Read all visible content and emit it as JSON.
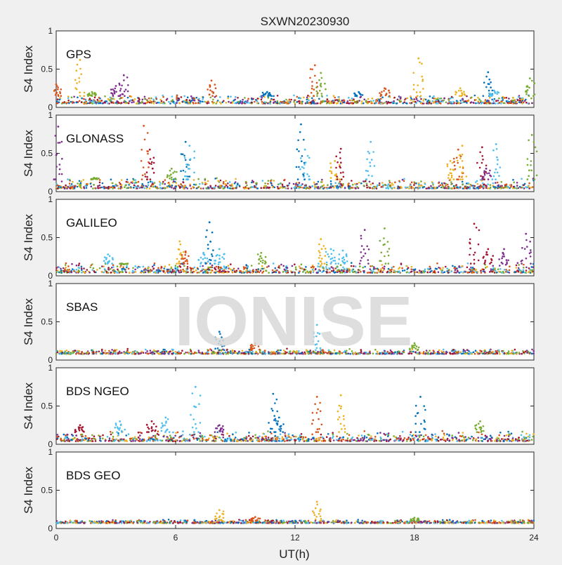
{
  "figure_title": "SXWN20230930",
  "watermark": "IONISE",
  "xlabel": "UT(h)",
  "ylabel": "S4 Index",
  "colors": [
    "#0072BD",
    "#D95319",
    "#EDB120",
    "#7E2F8E",
    "#77AC30",
    "#4DBEEE",
    "#A2142F"
  ],
  "chart_data": [
    {
      "type": "scatter",
      "label": "GPS",
      "xlim": [
        0,
        24
      ],
      "ylim": [
        0,
        1
      ],
      "xticks": [
        "0",
        "6",
        "12",
        "18",
        "24"
      ],
      "yticks": [
        "0",
        "0.5",
        "1"
      ],
      "baseline": [
        0.03,
        0.15
      ],
      "spikes": [
        {
          "x": 0.0,
          "peak": 0.3,
          "c": 1
        },
        {
          "x": 1.2,
          "peak": 0.62,
          "c": 2
        },
        {
          "x": 1.8,
          "peak": 0.2,
          "c": 4
        },
        {
          "x": 3.0,
          "peak": 0.28,
          "c": 3
        },
        {
          "x": 3.4,
          "peak": 0.42,
          "c": 3
        },
        {
          "x": 7.8,
          "peak": 0.35,
          "c": 1
        },
        {
          "x": 10.6,
          "peak": 0.2,
          "c": 0
        },
        {
          "x": 13.0,
          "peak": 0.55,
          "c": 1
        },
        {
          "x": 13.3,
          "peak": 0.45,
          "c": 4
        },
        {
          "x": 15.2,
          "peak": 0.2,
          "c": 0
        },
        {
          "x": 16.5,
          "peak": 0.25,
          "c": 1
        },
        {
          "x": 18.2,
          "peak": 0.64,
          "c": 2
        },
        {
          "x": 20.3,
          "peak": 0.25,
          "c": 2
        },
        {
          "x": 21.7,
          "peak": 0.46,
          "c": 0
        },
        {
          "x": 22.0,
          "peak": 0.22,
          "c": 5
        },
        {
          "x": 23.8,
          "peak": 0.38,
          "c": 4
        }
      ]
    },
    {
      "type": "scatter",
      "label": "GLONASS",
      "xlim": [
        0,
        24
      ],
      "ylim": [
        0,
        1
      ],
      "xticks": [
        "0",
        "6",
        "12",
        "18",
        "24"
      ],
      "yticks": [
        "0",
        "0.5",
        "1"
      ],
      "baseline": [
        0.02,
        0.16
      ],
      "spikes": [
        {
          "x": 0.1,
          "peak": 0.85,
          "c": 3
        },
        {
          "x": 1.9,
          "peak": 0.18,
          "c": 4
        },
        {
          "x": 4.4,
          "peak": 0.86,
          "c": 1
        },
        {
          "x": 4.7,
          "peak": 0.55,
          "c": 6
        },
        {
          "x": 5.8,
          "peak": 0.3,
          "c": 4
        },
        {
          "x": 6.5,
          "peak": 0.65,
          "c": 0
        },
        {
          "x": 6.7,
          "peak": 0.6,
          "c": 5
        },
        {
          "x": 12.3,
          "peak": 0.88,
          "c": 0
        },
        {
          "x": 12.5,
          "peak": 0.55,
          "c": 5
        },
        {
          "x": 14.0,
          "peak": 0.4,
          "c": 2
        },
        {
          "x": 14.3,
          "peak": 0.56,
          "c": 6
        },
        {
          "x": 15.8,
          "peak": 0.65,
          "c": 5
        },
        {
          "x": 19.8,
          "peak": 0.4,
          "c": 2
        },
        {
          "x": 20.2,
          "peak": 0.55,
          "c": 1
        },
        {
          "x": 20.4,
          "peak": 0.6,
          "c": 2
        },
        {
          "x": 21.4,
          "peak": 0.58,
          "c": 6
        },
        {
          "x": 21.6,
          "peak": 0.3,
          "c": 3
        },
        {
          "x": 22.1,
          "peak": 0.62,
          "c": 5
        },
        {
          "x": 23.9,
          "peak": 0.74,
          "c": 4
        }
      ]
    },
    {
      "type": "scatter",
      "label": "GALILEO",
      "xlim": [
        0,
        24
      ],
      "ylim": [
        0,
        1
      ],
      "xticks": [
        "0",
        "6",
        "12",
        "18",
        "24"
      ],
      "yticks": [
        "0",
        "0.5",
        "1"
      ],
      "baseline": [
        0.02,
        0.16
      ],
      "spikes": [
        {
          "x": 2.6,
          "peak": 0.28,
          "c": 5
        },
        {
          "x": 3.4,
          "peak": 0.15,
          "c": 4
        },
        {
          "x": 6.2,
          "peak": 0.45,
          "c": 2
        },
        {
          "x": 6.5,
          "peak": 0.32,
          "c": 1
        },
        {
          "x": 7.4,
          "peak": 0.3,
          "c": 5
        },
        {
          "x": 7.7,
          "peak": 0.7,
          "c": 0
        },
        {
          "x": 8.2,
          "peak": 0.35,
          "c": 5
        },
        {
          "x": 10.3,
          "peak": 0.3,
          "c": 4
        },
        {
          "x": 13.3,
          "peak": 0.48,
          "c": 2
        },
        {
          "x": 13.8,
          "peak": 0.35,
          "c": 5
        },
        {
          "x": 14.4,
          "peak": 0.33,
          "c": 5
        },
        {
          "x": 15.5,
          "peak": 0.6,
          "c": 3
        },
        {
          "x": 16.5,
          "peak": 0.62,
          "c": 4
        },
        {
          "x": 21.0,
          "peak": 0.68,
          "c": 6
        },
        {
          "x": 21.7,
          "peak": 0.35,
          "c": 6
        },
        {
          "x": 22.5,
          "peak": 0.35,
          "c": 3
        },
        {
          "x": 23.6,
          "peak": 0.55,
          "c": 3
        }
      ]
    },
    {
      "type": "scatter",
      "label": "SBAS",
      "xlim": [
        0,
        24
      ],
      "ylim": [
        0,
        1
      ],
      "xticks": [
        "0",
        "6",
        "12",
        "18",
        "24"
      ],
      "yticks": [
        "0",
        "0.5",
        "1"
      ],
      "baseline": [
        0.06,
        0.13
      ],
      "spikes": [
        {
          "x": 8.2,
          "peak": 0.37,
          "c": 0
        },
        {
          "x": 10.0,
          "peak": 0.22,
          "c": 1
        },
        {
          "x": 13.1,
          "peak": 0.46,
          "c": 5
        },
        {
          "x": 18.0,
          "peak": 0.22,
          "c": 4
        }
      ]
    },
    {
      "type": "scatter",
      "label": "BDS NGEO",
      "xlim": [
        0,
        24
      ],
      "ylim": [
        0,
        1
      ],
      "xticks": [
        "0",
        "6",
        "12",
        "18",
        "24"
      ],
      "yticks": [
        "0",
        "0.5",
        "1"
      ],
      "baseline": [
        0.02,
        0.16
      ],
      "spikes": [
        {
          "x": 1.2,
          "peak": 0.25,
          "c": 6
        },
        {
          "x": 3.2,
          "peak": 0.3,
          "c": 5
        },
        {
          "x": 4.8,
          "peak": 0.3,
          "c": 6
        },
        {
          "x": 5.5,
          "peak": 0.35,
          "c": 5
        },
        {
          "x": 7.0,
          "peak": 0.75,
          "c": 5
        },
        {
          "x": 8.2,
          "peak": 0.25,
          "c": 3
        },
        {
          "x": 10.9,
          "peak": 0.66,
          "c": 0
        },
        {
          "x": 11.2,
          "peak": 0.35,
          "c": 0
        },
        {
          "x": 13.1,
          "peak": 0.62,
          "c": 1
        },
        {
          "x": 14.3,
          "peak": 0.64,
          "c": 2
        },
        {
          "x": 18.3,
          "peak": 0.62,
          "c": 0
        },
        {
          "x": 21.3,
          "peak": 0.3,
          "c": 4
        }
      ]
    },
    {
      "type": "scatter",
      "label": "BDS GEO",
      "xlim": [
        0,
        24
      ],
      "ylim": [
        0,
        1
      ],
      "xticks": [
        "0",
        "6",
        "12",
        "18",
        "24"
      ],
      "yticks": [
        "0",
        "0.5",
        "1"
      ],
      "baseline": [
        0.05,
        0.1
      ],
      "spikes": [
        {
          "x": 8.2,
          "peak": 0.24,
          "c": 2
        },
        {
          "x": 10.0,
          "peak": 0.15,
          "c": 1
        },
        {
          "x": 13.1,
          "peak": 0.35,
          "c": 2
        },
        {
          "x": 18.0,
          "peak": 0.14,
          "c": 4
        }
      ]
    }
  ]
}
